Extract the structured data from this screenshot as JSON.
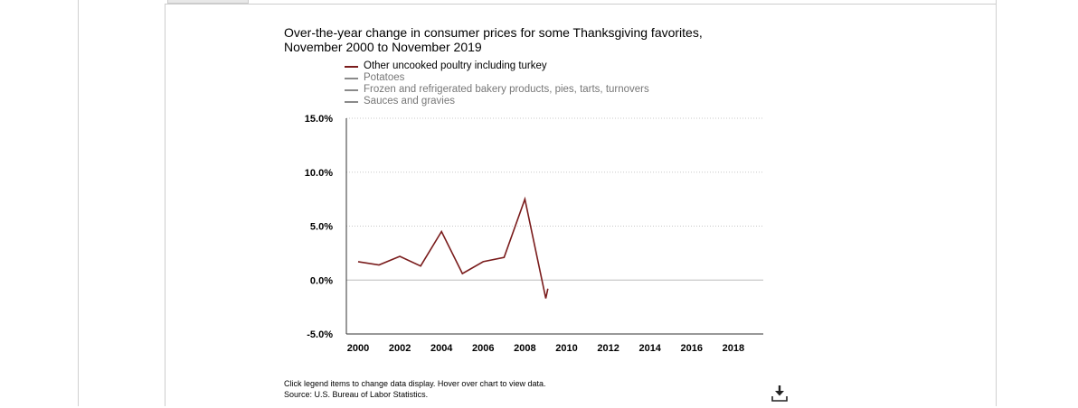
{
  "chart_data": {
    "type": "line",
    "title_lines": [
      "Over-the-year change in consumer prices for some Thanksgiving favorites,",
      "November 2000 to November 2019"
    ],
    "ylim": [
      -5.0,
      15.0
    ],
    "yticks": [
      15.0,
      10.0,
      5.0,
      0.0,
      -5.0
    ],
    "ytick_labels": [
      "15.0%",
      "10.0%",
      "5.0%",
      "0.0%",
      "-5.0%"
    ],
    "xlim": [
      2000,
      2019
    ],
    "xticks": [
      2000,
      2002,
      2004,
      2006,
      2008,
      2010,
      2012,
      2014,
      2016,
      2018
    ],
    "xtick_labels": [
      "2000",
      "2002",
      "2004",
      "2006",
      "2008",
      "2010",
      "2012",
      "2014",
      "2016",
      "2018"
    ],
    "grid": "horizontal dotted",
    "legend_position": "top",
    "series": [
      {
        "name": "Other uncooked poultry including turkey",
        "color": "#7a1c1c",
        "active": true,
        "x": [
          2000,
          2001,
          2002,
          2003,
          2004,
          2005,
          2006,
          2007,
          2008,
          2009,
          2009.1
        ],
        "values": [
          1.7,
          1.4,
          2.2,
          1.3,
          4.5,
          0.6,
          1.7,
          2.1,
          7.5,
          -1.7,
          -0.8
        ]
      },
      {
        "name": "Potatoes",
        "color": "#8a8a8a",
        "active": false,
        "x": [],
        "values": []
      },
      {
        "name": "Frozen and refrigerated bakery products, pies, tarts, turnovers",
        "color": "#8a8a8a",
        "active": false,
        "x": [],
        "values": []
      },
      {
        "name": "Sauces and gravies",
        "color": "#8a8a8a",
        "active": false,
        "x": [],
        "values": []
      }
    ]
  },
  "footnote": {
    "line1": "Click legend items to change data display. Hover over chart to view data.",
    "line2": "Source: U.S. Bureau of Labor Statistics."
  },
  "icons": {
    "download": "download-icon"
  }
}
